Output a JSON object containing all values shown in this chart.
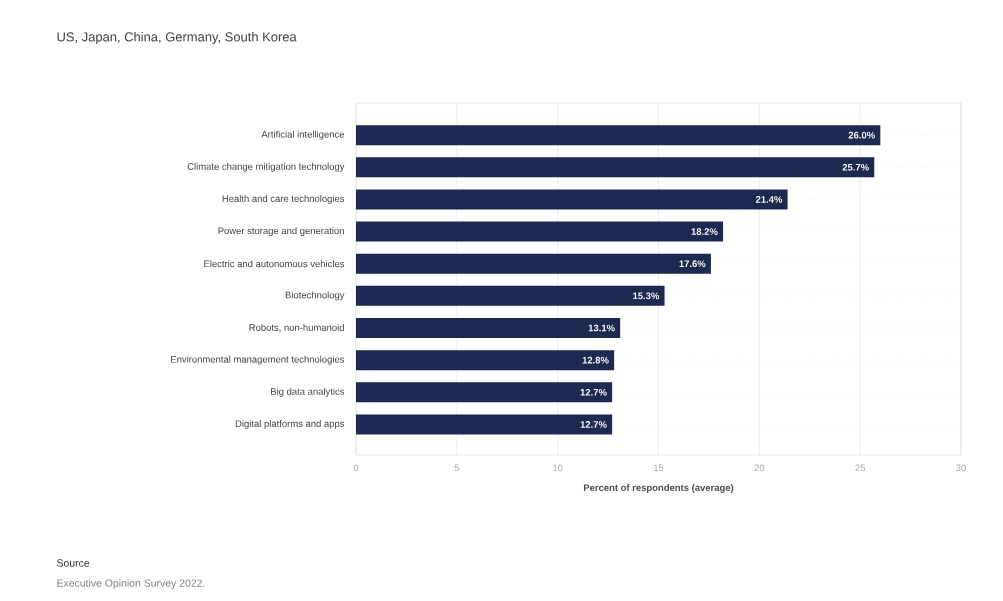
{
  "chart_data": {
    "type": "bar",
    "orientation": "horizontal",
    "title": "US, Japan, China, Germany, South Korea",
    "xlabel": "Percent of respondents (average)",
    "categories": [
      "Artificial intelligence",
      "Climate change mitigation technology",
      "Health and care technologies",
      "Power storage and generation",
      "Electric and autonomous vehicles",
      "Biotechnology",
      "Robots, non-humanoid",
      "Environmental management technologies",
      "Big data analytics",
      "Digital platforms and apps"
    ],
    "values": [
      26.0,
      25.7,
      21.4,
      18.2,
      17.6,
      15.3,
      13.1,
      12.8,
      12.7,
      12.7
    ],
    "value_labels": [
      "26.0%",
      "25.7%",
      "21.4%",
      "18.2%",
      "17.6%",
      "15.3%",
      "13.1%",
      "12.8%",
      "12.7%",
      "12.7%"
    ],
    "color": "#1c2951",
    "xlim": [
      0,
      30
    ],
    "xticks": [
      0,
      5,
      10,
      15,
      20,
      25,
      30
    ],
    "grid": true,
    "annotations": [
      "Source",
      "Executive Opinion Survey 2022."
    ]
  }
}
